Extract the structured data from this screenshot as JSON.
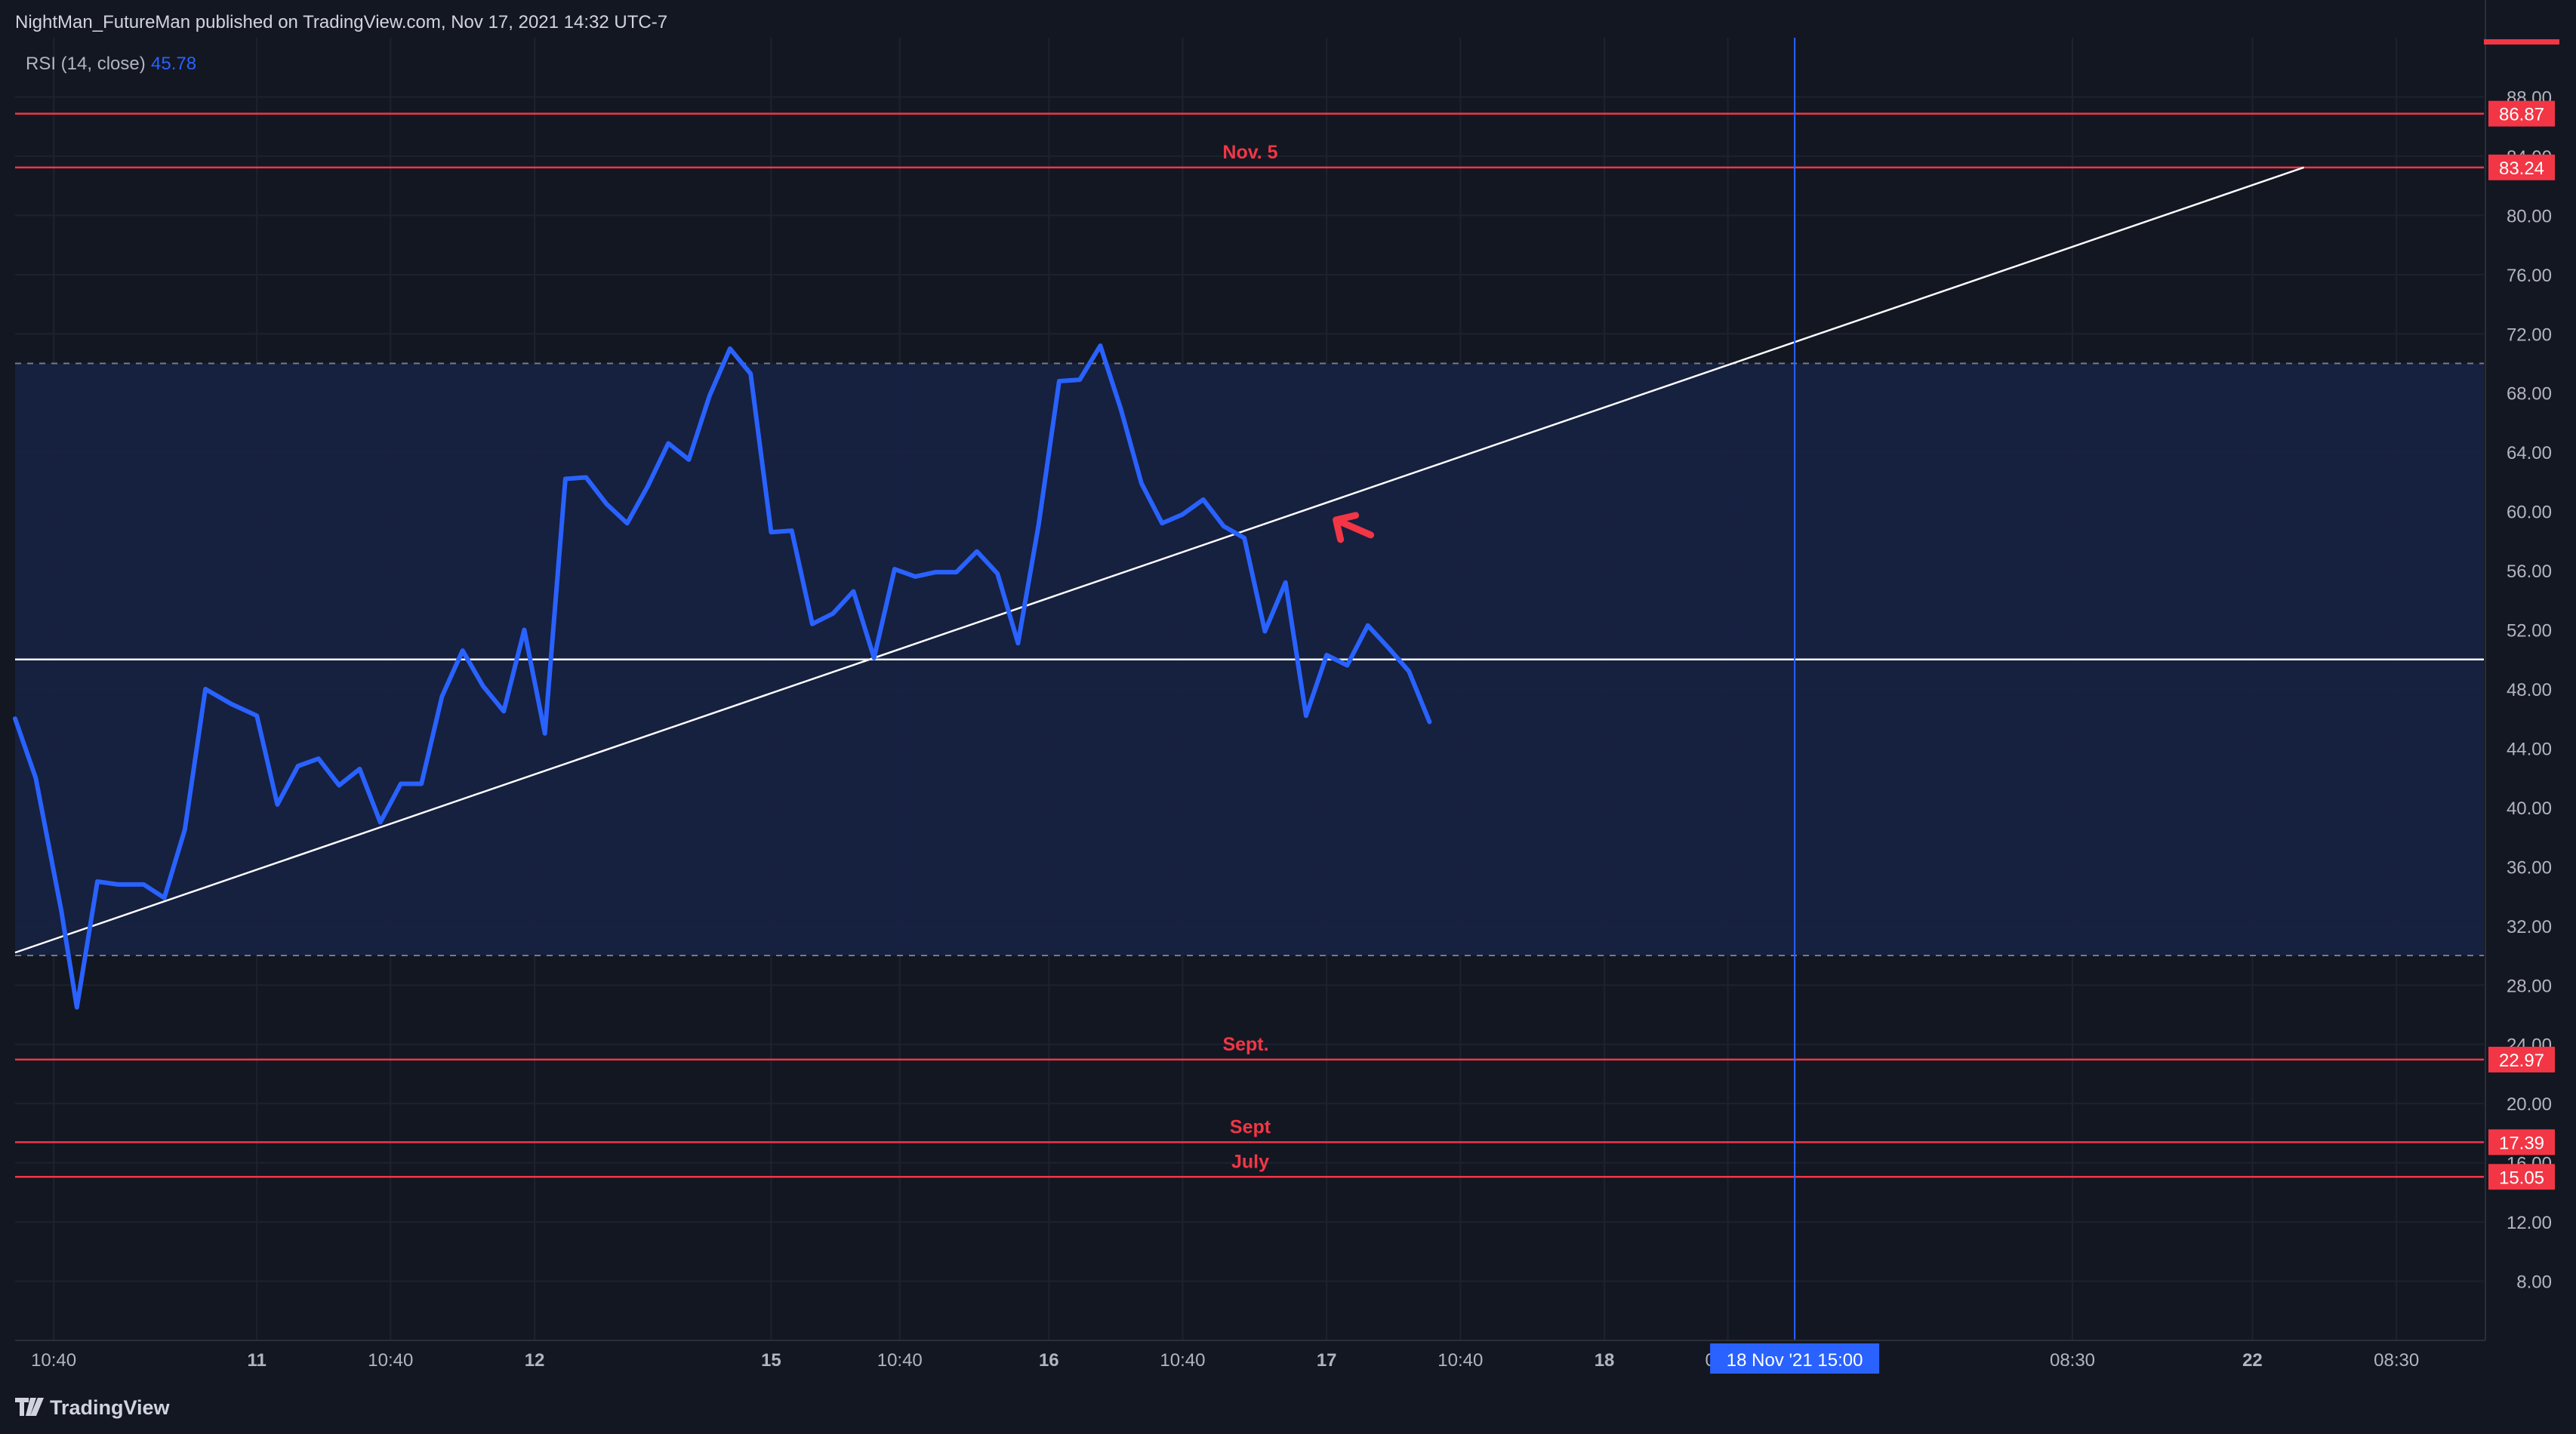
{
  "header": {
    "published_text": "NightMan_FutureMan published on TradingView.com, Nov 17, 2021 14:32 UTC-7"
  },
  "indicator": {
    "name": "RSI (14, close)",
    "value": "45.78"
  },
  "footer": {
    "logo_text": "TradingView",
    "logo_icon": "tradingview-logo-icon"
  },
  "colors": {
    "background": "#131722",
    "band_fill": "#172143",
    "rsi_line": "#2962ff",
    "trend_line": "#ffffff",
    "level_line": "#f23645",
    "annotation_text": "#f23645",
    "axis_text": "#b2b5be",
    "crosshair": "#2962ff"
  },
  "annotations": {
    "nov5": "Nov. 5",
    "sept1": "Sept.",
    "sept2": "Sept",
    "july": "July"
  },
  "crosshair_label": "18 Nov '21   15:00",
  "chart_data": {
    "type": "line",
    "title": "RSI (14, close)",
    "ylim": [
      4,
      92
    ],
    "y_ticks": [
      "88.00",
      "84.00",
      "80.00",
      "76.00",
      "72.00",
      "68.00",
      "64.00",
      "60.00",
      "56.00",
      "52.00",
      "48.00",
      "44.00",
      "40.00",
      "36.00",
      "32.00",
      "28.00",
      "24.00",
      "20.00",
      "16.00",
      "12.00",
      "8.00"
    ],
    "x_ticks": [
      {
        "label": "10:40",
        "x": 0.75
      },
      {
        "label": "11",
        "x": 4.7
      },
      {
        "label": "10:40",
        "x": 7.3
      },
      {
        "label": "12",
        "x": 10.1
      },
      {
        "label": "15",
        "x": 14.7
      },
      {
        "label": "10:40",
        "x": 17.2
      },
      {
        "label": "16",
        "x": 20.1
      },
      {
        "label": "10:40",
        "x": 22.7
      },
      {
        "label": "17",
        "x": 25.5
      },
      {
        "label": "10:40",
        "x": 28.1
      },
      {
        "label": "18",
        "x": 30.9
      },
      {
        "label": "08:30",
        "x": 33.3
      },
      {
        "label": "08:30",
        "x": 40.0
      },
      {
        "label": "22",
        "x": 43.5
      },
      {
        "label": "08:30",
        "x": 46.3
      }
    ],
    "rsi_series": [
      [
        0,
        46
      ],
      [
        0.4,
        42
      ],
      [
        0.9,
        33
      ],
      [
        1.2,
        26.5
      ],
      [
        1.6,
        35
      ],
      [
        2.0,
        34.8
      ],
      [
        2.5,
        34.8
      ],
      [
        2.9,
        33.9
      ],
      [
        3.3,
        38.5
      ],
      [
        3.7,
        48
      ],
      [
        4.2,
        47
      ],
      [
        4.7,
        46.2
      ],
      [
        5.1,
        40.2
      ],
      [
        5.5,
        42.8
      ],
      [
        5.9,
        43.3
      ],
      [
        6.3,
        41.5
      ],
      [
        6.7,
        42.6
      ],
      [
        7.1,
        39
      ],
      [
        7.5,
        41.6
      ],
      [
        7.9,
        41.6
      ],
      [
        8.3,
        47.5
      ],
      [
        8.7,
        50.6
      ],
      [
        9.1,
        48.2
      ],
      [
        9.5,
        46.5
      ],
      [
        9.9,
        52
      ],
      [
        10.3,
        45
      ],
      [
        10.7,
        62.2
      ],
      [
        11.1,
        62.3
      ],
      [
        11.5,
        60.5
      ],
      [
        11.9,
        59.2
      ],
      [
        12.3,
        61.7
      ],
      [
        12.7,
        64.6
      ],
      [
        13.1,
        63.5
      ],
      [
        13.5,
        67.8
      ],
      [
        13.9,
        71
      ],
      [
        14.3,
        69.3
      ],
      [
        14.7,
        58.6
      ],
      [
        15.1,
        58.7
      ],
      [
        15.5,
        52.4
      ],
      [
        15.9,
        53.1
      ],
      [
        16.3,
        54.6
      ],
      [
        16.7,
        50.1
      ],
      [
        17.1,
        56.1
      ],
      [
        17.5,
        55.6
      ],
      [
        17.9,
        55.9
      ],
      [
        18.3,
        55.9
      ],
      [
        18.7,
        57.3
      ],
      [
        19.1,
        55.8
      ],
      [
        19.5,
        51.1
      ],
      [
        19.9,
        59.1
      ],
      [
        20.3,
        68.8
      ],
      [
        20.7,
        68.9
      ],
      [
        21.1,
        71.2
      ],
      [
        21.5,
        66.9
      ],
      [
        21.9,
        61.9
      ],
      [
        22.3,
        59.2
      ],
      [
        22.7,
        59.8
      ],
      [
        23.1,
        60.8
      ],
      [
        23.5,
        59
      ],
      [
        23.9,
        58.2
      ],
      [
        24.3,
        51.9
      ],
      [
        24.7,
        55.2
      ],
      [
        25.1,
        46.2
      ],
      [
        25.5,
        50.3
      ],
      [
        25.9,
        49.6
      ],
      [
        26.3,
        52.3
      ],
      [
        26.7,
        50.8
      ],
      [
        27.1,
        49.2
      ],
      [
        27.5,
        45.78
      ]
    ],
    "reference_levels": {
      "upper": 70,
      "middle": 50,
      "lower": 30
    },
    "horizontal_levels": [
      {
        "value": 86.87,
        "label": "86.87",
        "note": ""
      },
      {
        "value": 83.24,
        "label": "83.24",
        "note": "Nov. 5"
      },
      {
        "value": 22.97,
        "label": "22.97",
        "note": "Sept."
      },
      {
        "value": 17.39,
        "label": "17.39",
        "note": "Sept"
      },
      {
        "value": 15.05,
        "label": "15.05",
        "note": "July"
      }
    ],
    "trend_line": {
      "x1": 0,
      "y1": 30.2,
      "x2": 44.5,
      "y2": 83.24
    },
    "crosshair_x": 34.6,
    "arrow_point": {
      "x": 25.8,
      "y": 58
    }
  }
}
